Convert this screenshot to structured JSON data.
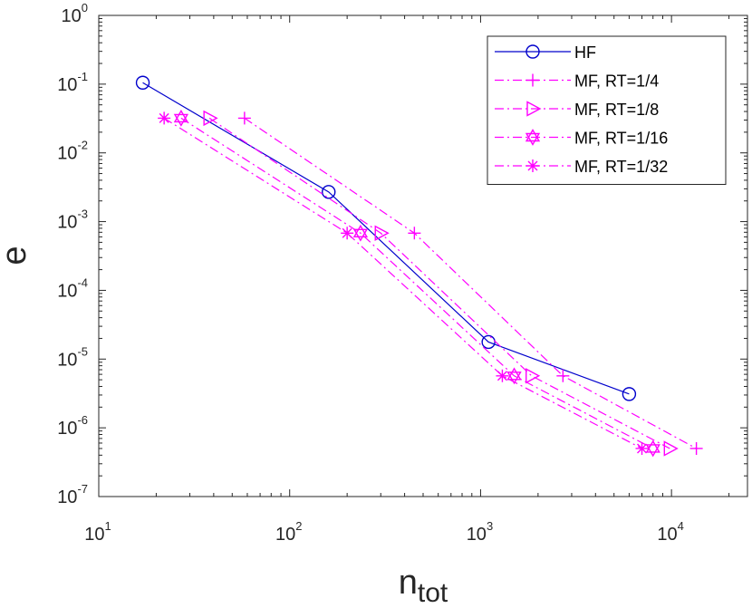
{
  "chart_data": {
    "type": "line",
    "title": "",
    "xlabel": {
      "base": "n",
      "sub": "tot"
    },
    "ylabel": "e",
    "xscale": "log",
    "yscale": "log",
    "xlim": [
      10,
      25000
    ],
    "ylim": [
      1e-07,
      1
    ],
    "x_ticks": [
      {
        "value": 10,
        "base": "10",
        "exp": "1"
      },
      {
        "value": 100,
        "base": "10",
        "exp": "2"
      },
      {
        "value": 1000,
        "base": "10",
        "exp": "3"
      },
      {
        "value": 10000,
        "base": "10",
        "exp": "4"
      }
    ],
    "y_ticks": [
      {
        "value": 1,
        "base": "10",
        "exp": "0"
      },
      {
        "value": 0.1,
        "base": "10",
        "exp": "-1"
      },
      {
        "value": 0.01,
        "base": "10",
        "exp": "-2"
      },
      {
        "value": 0.001,
        "base": "10",
        "exp": "-3"
      },
      {
        "value": 0.0001,
        "base": "10",
        "exp": "-4"
      },
      {
        "value": 1e-05,
        "base": "10",
        "exp": "-5"
      },
      {
        "value": 1e-06,
        "base": "10",
        "exp": "-6"
      },
      {
        "value": 1e-07,
        "base": "10",
        "exp": "-7"
      }
    ],
    "grid": false,
    "legend_position": "top-right",
    "series": [
      {
        "name": "HF",
        "color": "#0000cc",
        "line": "solid",
        "marker": "circle",
        "x": [
          17,
          160,
          1100,
          6000
        ],
        "y": [
          0.105,
          0.0027,
          1.77e-05,
          3.1e-06
        ]
      },
      {
        "name": "MF, RT=1/4",
        "color": "#ff00ff",
        "line": "dashdot",
        "marker": "plus",
        "x": [
          58,
          450,
          2700,
          13500
        ],
        "y": [
          0.032,
          0.00068,
          5.7e-06,
          5e-07
        ]
      },
      {
        "name": "MF, RT=1/8",
        "color": "#ff00ff",
        "line": "dashdot",
        "marker": "triangle-right",
        "x": [
          38,
          300,
          1850,
          9800
        ],
        "y": [
          0.032,
          0.00068,
          5.7e-06,
          5e-07
        ]
      },
      {
        "name": "MF, RT=1/16",
        "color": "#ff00ff",
        "line": "dashdot",
        "marker": "hexagram",
        "x": [
          27,
          235,
          1500,
          8000
        ],
        "y": [
          0.032,
          0.00068,
          5.7e-06,
          5e-07
        ]
      },
      {
        "name": "MF, RT=1/32",
        "color": "#ff00ff",
        "line": "dashdot",
        "marker": "asterisk",
        "x": [
          22,
          200,
          1300,
          7000
        ],
        "y": [
          0.032,
          0.00068,
          5.7e-06,
          5e-07
        ]
      }
    ]
  }
}
